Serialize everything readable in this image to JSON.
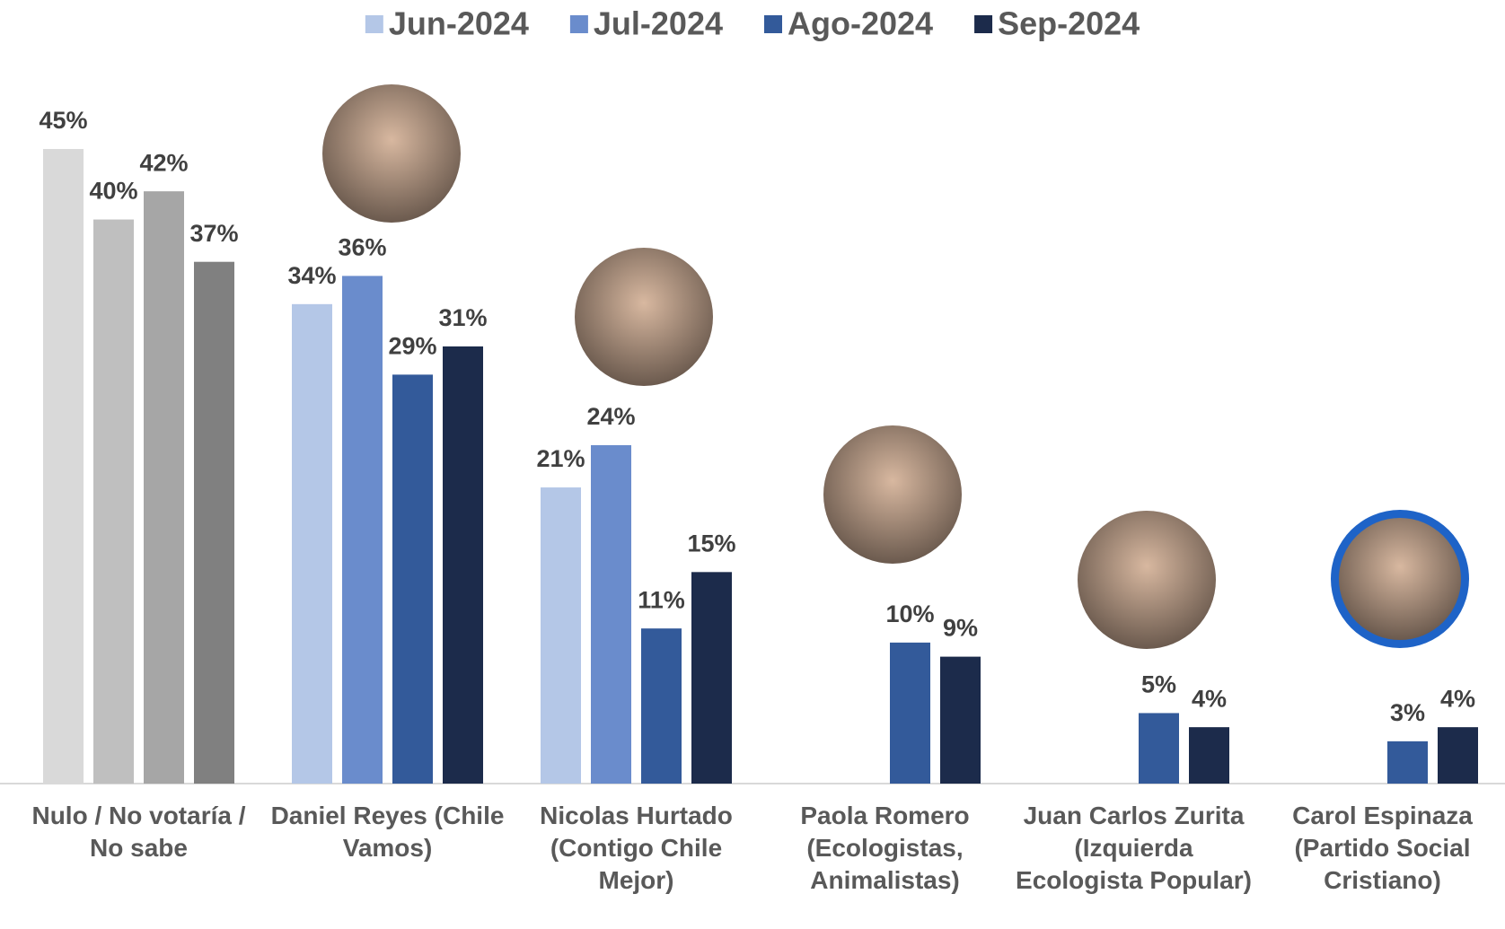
{
  "chart_data": {
    "type": "bar",
    "categories": [
      "Nulo / No votaría / No sabe",
      "Daniel Reyes (Chile Vamos)",
      "Nicolas Hurtado (Contigo Chile Mejor)",
      "Paola Romero (Ecologistas, Animalistas)",
      "Juan Carlos Zurita (Izquierda Ecologista Popular)",
      "Carol Espinaza (Partido Social Cristiano)"
    ],
    "series": [
      {
        "name": "Jun-2024",
        "color": "#b4c7e7",
        "first_category_color": "#d9d9d9",
        "values": [
          45,
          34,
          21,
          null,
          null,
          null
        ],
        "value_labels": [
          "45%",
          "34%",
          "21%",
          null,
          null,
          null
        ]
      },
      {
        "name": "Jul-2024",
        "color": "#6a8ccc",
        "first_category_color": "#bfbfbf",
        "values": [
          40,
          36,
          24,
          null,
          null,
          null
        ],
        "value_labels": [
          "40%",
          "36%",
          "24%",
          null,
          null,
          null
        ]
      },
      {
        "name": "Ago-2024",
        "color": "#335a9a",
        "first_category_color": "#a6a6a6",
        "values": [
          42,
          29,
          11,
          10,
          5,
          3
        ],
        "value_labels": [
          "42%",
          "29%",
          "11%",
          "10%",
          "5%",
          "3%"
        ]
      },
      {
        "name": "Sep-2024",
        "color": "#1c2b4b",
        "first_category_color": "#808080",
        "values": [
          37,
          31,
          15,
          9,
          4,
          4
        ],
        "value_labels": [
          "37%",
          "31%",
          "15%",
          "9%",
          "4%",
          "4%"
        ]
      }
    ],
    "legend": "top"
  }
}
